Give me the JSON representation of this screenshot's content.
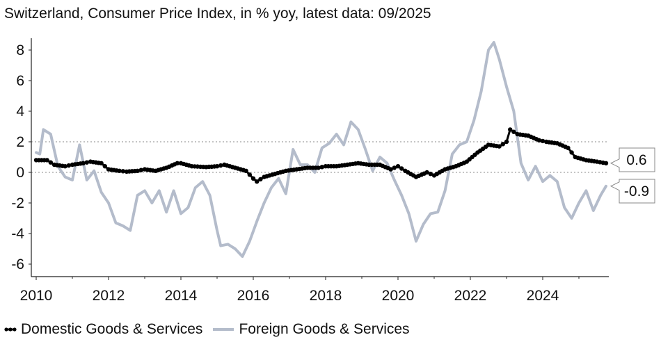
{
  "chart_data": {
    "type": "line",
    "title": "Switzerland, Consumer Price Index, in % yoy, latest data: 09/2025",
    "xlabel": "",
    "ylabel": "",
    "xlim": [
      2010.0,
      2025.9
    ],
    "ylim": [
      -7,
      9
    ],
    "x_ticks": [
      2010,
      2012,
      2014,
      2016,
      2018,
      2020,
      2022,
      2024
    ],
    "y_ticks": [
      8,
      6,
      4,
      2,
      0,
      -2,
      -4,
      -6
    ],
    "reference_lines": [
      2,
      0
    ],
    "grid": false,
    "legend_position": "bottom-left",
    "end_labels": [
      "0.6",
      "-0.9"
    ],
    "series": [
      {
        "name": "Domestic Goods & Services",
        "color": "#000000",
        "marker": "dot",
        "points": [
          [
            2010.0,
            0.8
          ],
          [
            2010.3,
            0.8
          ],
          [
            2010.5,
            0.5
          ],
          [
            2010.8,
            0.4
          ],
          [
            2011.0,
            0.5
          ],
          [
            2011.3,
            0.6
          ],
          [
            2011.5,
            0.7
          ],
          [
            2011.8,
            0.6
          ],
          [
            2012.0,
            0.2
          ],
          [
            2012.3,
            0.1
          ],
          [
            2012.5,
            0.05
          ],
          [
            2012.8,
            0.1
          ],
          [
            2013.0,
            0.2
          ],
          [
            2013.3,
            0.1
          ],
          [
            2013.6,
            0.3
          ],
          [
            2013.9,
            0.6
          ],
          [
            2014.0,
            0.6
          ],
          [
            2014.3,
            0.4
          ],
          [
            2014.7,
            0.35
          ],
          [
            2015.0,
            0.4
          ],
          [
            2015.2,
            0.5
          ],
          [
            2015.5,
            0.3
          ],
          [
            2015.8,
            0.1
          ],
          [
            2016.0,
            -0.4
          ],
          [
            2016.1,
            -0.6
          ],
          [
            2016.3,
            -0.3
          ],
          [
            2016.6,
            -0.1
          ],
          [
            2016.9,
            0.1
          ],
          [
            2017.2,
            0.2
          ],
          [
            2017.5,
            0.3
          ],
          [
            2017.8,
            0.3
          ],
          [
            2018.0,
            0.4
          ],
          [
            2018.3,
            0.4
          ],
          [
            2018.6,
            0.5
          ],
          [
            2018.9,
            0.6
          ],
          [
            2019.2,
            0.5
          ],
          [
            2019.5,
            0.5
          ],
          [
            2019.8,
            0.2
          ],
          [
            2020.0,
            0.4
          ],
          [
            2020.2,
            0.1
          ],
          [
            2020.5,
            -0.3
          ],
          [
            2020.8,
            0.0
          ],
          [
            2021.0,
            -0.2
          ],
          [
            2021.3,
            0.2
          ],
          [
            2021.6,
            0.4
          ],
          [
            2021.9,
            0.7
          ],
          [
            2022.2,
            1.3
          ],
          [
            2022.5,
            1.8
          ],
          [
            2022.8,
            1.7
          ],
          [
            2023.0,
            2.0
          ],
          [
            2023.1,
            2.8
          ],
          [
            2023.3,
            2.5
          ],
          [
            2023.6,
            2.4
          ],
          [
            2023.9,
            2.1
          ],
          [
            2024.1,
            2.0
          ],
          [
            2024.4,
            1.9
          ],
          [
            2024.7,
            1.6
          ],
          [
            2024.9,
            1.0
          ],
          [
            2025.2,
            0.8
          ],
          [
            2025.5,
            0.7
          ],
          [
            2025.75,
            0.6
          ]
        ]
      },
      {
        "name": "Foreign Goods & Services",
        "color": "#b4bccb",
        "marker": "none",
        "points": [
          [
            2010.0,
            1.3
          ],
          [
            2010.1,
            1.2
          ],
          [
            2010.2,
            2.8
          ],
          [
            2010.4,
            2.5
          ],
          [
            2010.6,
            0.4
          ],
          [
            2010.8,
            -0.3
          ],
          [
            2011.0,
            -0.5
          ],
          [
            2011.2,
            1.8
          ],
          [
            2011.4,
            -0.5
          ],
          [
            2011.6,
            0.1
          ],
          [
            2011.8,
            -1.3
          ],
          [
            2012.0,
            -2.0
          ],
          [
            2012.2,
            -3.3
          ],
          [
            2012.4,
            -3.5
          ],
          [
            2012.6,
            -3.8
          ],
          [
            2012.8,
            -1.5
          ],
          [
            2013.0,
            -1.2
          ],
          [
            2013.2,
            -2.0
          ],
          [
            2013.4,
            -1.2
          ],
          [
            2013.6,
            -2.6
          ],
          [
            2013.8,
            -1.2
          ],
          [
            2014.0,
            -2.7
          ],
          [
            2014.2,
            -2.3
          ],
          [
            2014.4,
            -1.0
          ],
          [
            2014.6,
            -0.6
          ],
          [
            2014.8,
            -1.5
          ],
          [
            2015.0,
            -3.8
          ],
          [
            2015.1,
            -4.8
          ],
          [
            2015.3,
            -4.7
          ],
          [
            2015.5,
            -5.0
          ],
          [
            2015.7,
            -5.5
          ],
          [
            2015.9,
            -4.5
          ],
          [
            2016.1,
            -3.2
          ],
          [
            2016.3,
            -2.0
          ],
          [
            2016.5,
            -1.0
          ],
          [
            2016.7,
            -0.4
          ],
          [
            2016.9,
            -1.4
          ],
          [
            2017.1,
            1.5
          ],
          [
            2017.3,
            0.5
          ],
          [
            2017.5,
            0.5
          ],
          [
            2017.7,
            0.0
          ],
          [
            2017.9,
            1.6
          ],
          [
            2018.1,
            1.9
          ],
          [
            2018.3,
            2.5
          ],
          [
            2018.5,
            1.8
          ],
          [
            2018.7,
            3.3
          ],
          [
            2018.9,
            2.8
          ],
          [
            2019.1,
            1.5
          ],
          [
            2019.3,
            0.1
          ],
          [
            2019.5,
            1.0
          ],
          [
            2019.7,
            0.6
          ],
          [
            2019.9,
            -0.5
          ],
          [
            2020.1,
            -1.5
          ],
          [
            2020.3,
            -2.7
          ],
          [
            2020.5,
            -4.5
          ],
          [
            2020.7,
            -3.4
          ],
          [
            2020.9,
            -2.7
          ],
          [
            2021.1,
            -2.6
          ],
          [
            2021.3,
            -1.2
          ],
          [
            2021.5,
            1.2
          ],
          [
            2021.7,
            1.8
          ],
          [
            2021.9,
            2.0
          ],
          [
            2022.1,
            3.4
          ],
          [
            2022.3,
            5.3
          ],
          [
            2022.5,
            8.0
          ],
          [
            2022.65,
            8.5
          ],
          [
            2022.8,
            7.4
          ],
          [
            2023.0,
            5.6
          ],
          [
            2023.2,
            4.0
          ],
          [
            2023.4,
            0.6
          ],
          [
            2023.6,
            -0.5
          ],
          [
            2023.8,
            0.4
          ],
          [
            2024.0,
            -0.6
          ],
          [
            2024.2,
            -0.2
          ],
          [
            2024.4,
            -0.6
          ],
          [
            2024.6,
            -2.3
          ],
          [
            2024.8,
            -3.0
          ],
          [
            2025.0,
            -2.0
          ],
          [
            2025.2,
            -1.2
          ],
          [
            2025.4,
            -2.5
          ],
          [
            2025.6,
            -1.5
          ],
          [
            2025.75,
            -0.9
          ]
        ]
      }
    ]
  }
}
